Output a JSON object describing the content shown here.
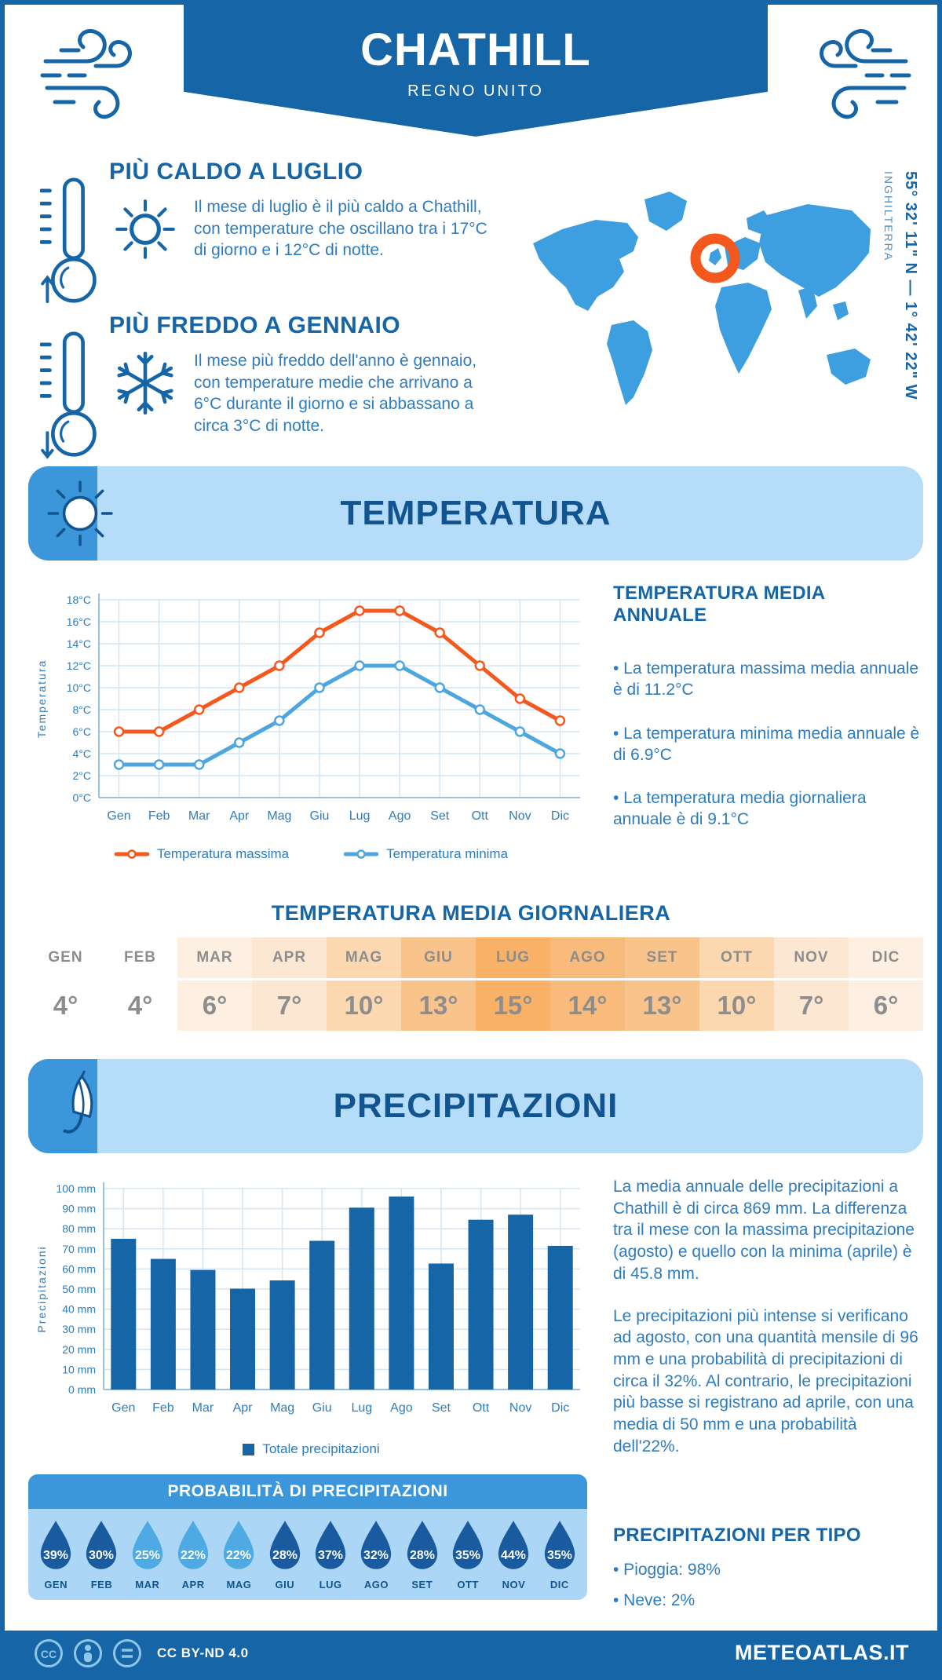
{
  "header": {
    "title": "CHATHILL",
    "subtitle": "REGNO UNITO"
  },
  "location": {
    "coordinates": "55° 32' 11\" N — 1° 42' 22\" W",
    "region": "INGHILTERRA"
  },
  "highlights": {
    "warm": {
      "title": "PIÙ CALDO A LUGLIO",
      "text": "Il mese di luglio è il più caldo a Chathill, con temperature che oscillano tra i 17°C di giorno e i 12°C di notte."
    },
    "cold": {
      "title": "PIÙ FREDDO A GENNAIO",
      "text": "Il mese più freddo dell'anno è gennaio, con temperature medie che arrivano a 6°C durante il giorno e si abbassano a circa 3°C di notte."
    }
  },
  "temperature": {
    "section_title": "TEMPERATURA",
    "annual_title": "TEMPERATURA MEDIA ANNUALE",
    "annual_stats": [
      "• La temperatura massima media annuale è di 11.2°C",
      "• La temperatura minima media annuale è di 6.9°C",
      "• La temperatura media giornaliera annuale è di 9.1°C"
    ],
    "daily_title": "TEMPERATURA MEDIA GIORNALIERA",
    "monthly_daily": {
      "months": [
        "GEN",
        "FEB",
        "MAR",
        "APR",
        "MAG",
        "GIU",
        "LUG",
        "AGO",
        "SET",
        "OTT",
        "NOV",
        "DIC"
      ],
      "values": [
        "4°",
        "4°",
        "6°",
        "7°",
        "10°",
        "13°",
        "15°",
        "14°",
        "13°",
        "10°",
        "7°",
        "6°"
      ],
      "cell_colors": [
        "#ffffff",
        "#ffffff",
        "#fdf0e3",
        "#fce7d2",
        "#fbd8b0",
        "#f9c48c",
        "#f8b166",
        "#f8bb7b",
        "#f9c48c",
        "#fbd8b0",
        "#fce7d2",
        "#fdf0e3"
      ]
    }
  },
  "precipitation": {
    "section_title": "PRECIPITAZIONI",
    "paragraphs": [
      "La media annuale delle precipitazioni a Chathill è di circa 869 mm. La differenza tra il mese con la massima precipitazione (agosto) e quello con la minima (aprile) è di 45.8 mm.",
      "Le precipitazioni più intense si verificano ad agosto, con una quantità mensile di 96 mm e una probabilità di precipitazioni di circa il 32%. Al contrario, le precipitazioni più basse si registrano ad aprile, con una media di 50 mm e una probabilità dell'22%."
    ],
    "probability": {
      "title": "PROBABILITÀ DI PRECIPITAZIONI",
      "months": [
        "GEN",
        "FEB",
        "MAR",
        "APR",
        "MAG",
        "GIU",
        "LUG",
        "AGO",
        "SET",
        "OTT",
        "NOV",
        "DIC"
      ],
      "values": [
        "39%",
        "30%",
        "25%",
        "22%",
        "22%",
        "28%",
        "37%",
        "32%",
        "28%",
        "35%",
        "44%",
        "35%"
      ],
      "drop_colors": [
        "#1a5a9e",
        "#1a5a9e",
        "#4fa9e2",
        "#4fa9e2",
        "#4fa9e2",
        "#1a5a9e",
        "#1a5a9e",
        "#1a5a9e",
        "#1a5a9e",
        "#1a5a9e",
        "#1a5a9e",
        "#1a5a9e"
      ]
    },
    "by_type": {
      "title": "PRECIPITAZIONI PER TIPO",
      "items": [
        "• Pioggia: 98%",
        "• Neve: 2%"
      ]
    }
  },
  "footer": {
    "license": "CC BY-ND 4.0",
    "brand": "METEOATLAS.IT"
  },
  "colors": {
    "primary": "#1565a7",
    "accent_orange": "#f4581d",
    "band_light": "#b5dcf8",
    "band_mid": "#3b97d9",
    "map_blue": "#3d9fe0",
    "text_blue": "#2e7cc0"
  },
  "chart_data": [
    {
      "type": "line",
      "title": "Temperatura massima e minima mensile",
      "x": [
        "Gen",
        "Feb",
        "Mar",
        "Apr",
        "Mag",
        "Giu",
        "Lug",
        "Ago",
        "Set",
        "Ott",
        "Nov",
        "Dic"
      ],
      "ylabel": "Temperatura",
      "ylim": [
        0,
        18
      ],
      "ytick_step": 2,
      "ytick_suffix": "°C",
      "grid": true,
      "legend_position": "bottom",
      "series": [
        {
          "name": "Temperatura massima",
          "color": "#f4581d",
          "values": [
            6,
            6,
            8,
            10,
            12,
            15,
            17,
            17,
            15,
            12,
            9,
            7
          ]
        },
        {
          "name": "Temperatura minima",
          "color": "#4da6dd",
          "values": [
            3,
            3,
            3,
            5,
            7,
            10,
            12,
            12,
            10,
            8,
            6,
            4
          ]
        }
      ]
    },
    {
      "type": "bar",
      "title": "Totale precipitazioni mensili",
      "x": [
        "Gen",
        "Feb",
        "Mar",
        "Apr",
        "Mag",
        "Giu",
        "Lug",
        "Ago",
        "Set",
        "Ott",
        "Nov",
        "Dic"
      ],
      "ylabel": "Precipitazioni",
      "ylim": [
        0,
        100
      ],
      "ytick_step": 10,
      "ytick_suffix": " mm",
      "grid": true,
      "legend_position": "bottom",
      "series": [
        {
          "name": "Totale precipitazioni",
          "color": "#1565a7",
          "values": [
            75,
            65,
            59.5,
            50.2,
            54.3,
            74,
            90.5,
            96,
            62.7,
            84.5,
            87,
            71.5
          ]
        }
      ]
    }
  ]
}
